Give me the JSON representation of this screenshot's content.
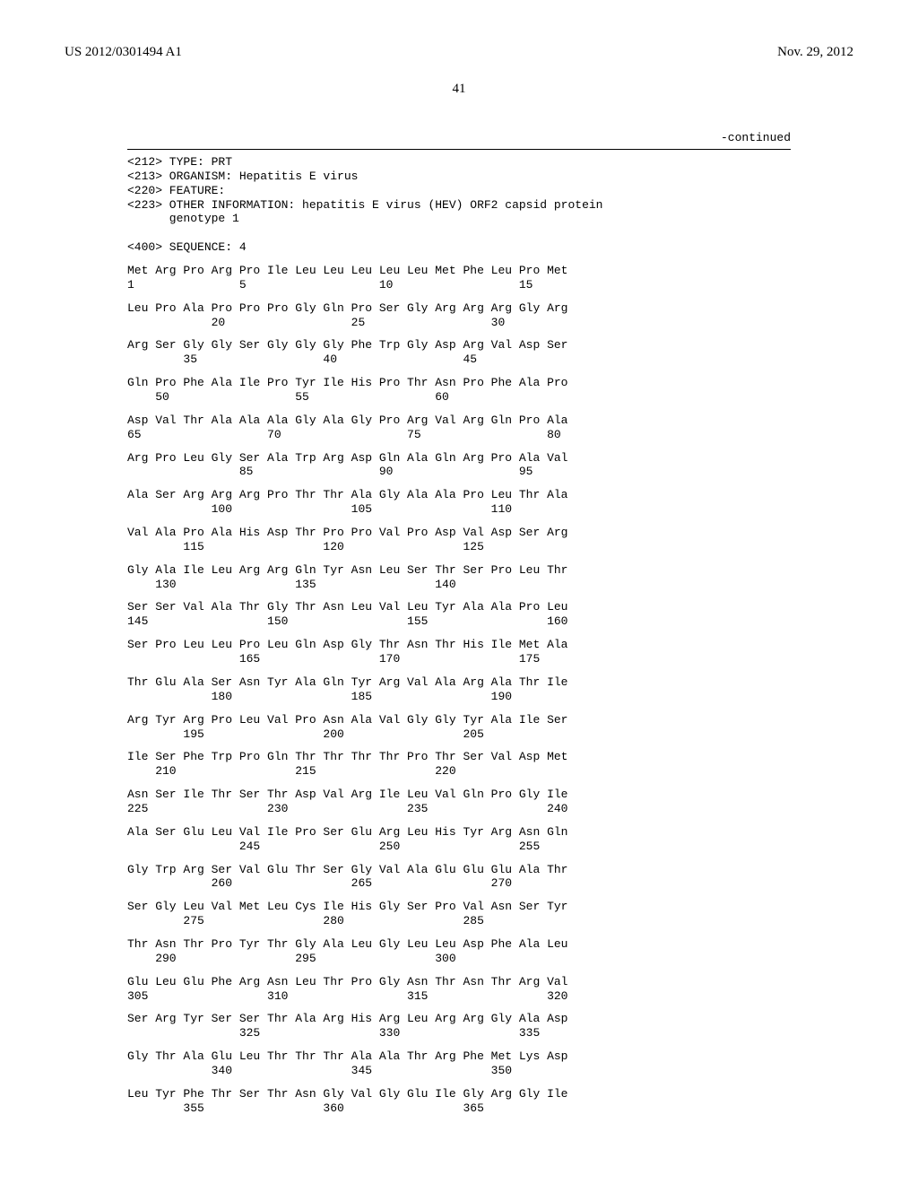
{
  "header": {
    "pub_number": "US 2012/0301494 A1",
    "pub_date": "Nov. 29, 2012"
  },
  "page_number": "41",
  "continued_label": "-continued",
  "meta": [
    "<212> TYPE: PRT",
    "<213> ORGANISM: Hepatitis E virus",
    "<220> FEATURE:",
    "<223> OTHER INFORMATION: hepatitis E virus (HEV) ORF2 capsid protein",
    "      genotype 1",
    "",
    "<400> SEQUENCE: 4"
  ],
  "sequence_rows": [
    {
      "aa": "Met Arg Pro Arg Pro Ile Leu Leu Leu Leu Leu Met Phe Leu Pro Met",
      "nm": "1               5                   10                  15"
    },
    {
      "aa": "Leu Pro Ala Pro Pro Pro Gly Gln Pro Ser Gly Arg Arg Arg Gly Arg",
      "nm": "            20                  25                  30"
    },
    {
      "aa": "Arg Ser Gly Gly Ser Gly Gly Gly Phe Trp Gly Asp Arg Val Asp Ser",
      "nm": "        35                  40                  45"
    },
    {
      "aa": "Gln Pro Phe Ala Ile Pro Tyr Ile His Pro Thr Asn Pro Phe Ala Pro",
      "nm": "    50                  55                  60"
    },
    {
      "aa": "Asp Val Thr Ala Ala Ala Gly Ala Gly Pro Arg Val Arg Gln Pro Ala",
      "nm": "65                  70                  75                  80"
    },
    {
      "aa": "Arg Pro Leu Gly Ser Ala Trp Arg Asp Gln Ala Gln Arg Pro Ala Val",
      "nm": "                85                  90                  95"
    },
    {
      "aa": "Ala Ser Arg Arg Arg Pro Thr Thr Ala Gly Ala Ala Pro Leu Thr Ala",
      "nm": "            100                 105                 110"
    },
    {
      "aa": "Val Ala Pro Ala His Asp Thr Pro Pro Val Pro Asp Val Asp Ser Arg",
      "nm": "        115                 120                 125"
    },
    {
      "aa": "Gly Ala Ile Leu Arg Arg Gln Tyr Asn Leu Ser Thr Ser Pro Leu Thr",
      "nm": "    130                 135                 140"
    },
    {
      "aa": "Ser Ser Val Ala Thr Gly Thr Asn Leu Val Leu Tyr Ala Ala Pro Leu",
      "nm": "145                 150                 155                 160"
    },
    {
      "aa": "Ser Pro Leu Leu Pro Leu Gln Asp Gly Thr Asn Thr His Ile Met Ala",
      "nm": "                165                 170                 175"
    },
    {
      "aa": "Thr Glu Ala Ser Asn Tyr Ala Gln Tyr Arg Val Ala Arg Ala Thr Ile",
      "nm": "            180                 185                 190"
    },
    {
      "aa": "Arg Tyr Arg Pro Leu Val Pro Asn Ala Val Gly Gly Tyr Ala Ile Ser",
      "nm": "        195                 200                 205"
    },
    {
      "aa": "Ile Ser Phe Trp Pro Gln Thr Thr Thr Thr Pro Thr Ser Val Asp Met",
      "nm": "    210                 215                 220"
    },
    {
      "aa": "Asn Ser Ile Thr Ser Thr Asp Val Arg Ile Leu Val Gln Pro Gly Ile",
      "nm": "225                 230                 235                 240"
    },
    {
      "aa": "Ala Ser Glu Leu Val Ile Pro Ser Glu Arg Leu His Tyr Arg Asn Gln",
      "nm": "                245                 250                 255"
    },
    {
      "aa": "Gly Trp Arg Ser Val Glu Thr Ser Gly Val Ala Glu Glu Glu Ala Thr",
      "nm": "            260                 265                 270"
    },
    {
      "aa": "Ser Gly Leu Val Met Leu Cys Ile His Gly Ser Pro Val Asn Ser Tyr",
      "nm": "        275                 280                 285"
    },
    {
      "aa": "Thr Asn Thr Pro Tyr Thr Gly Ala Leu Gly Leu Leu Asp Phe Ala Leu",
      "nm": "    290                 295                 300"
    },
    {
      "aa": "Glu Leu Glu Phe Arg Asn Leu Thr Pro Gly Asn Thr Asn Thr Arg Val",
      "nm": "305                 310                 315                 320"
    },
    {
      "aa": "Ser Arg Tyr Ser Ser Thr Ala Arg His Arg Leu Arg Arg Gly Ala Asp",
      "nm": "                325                 330                 335"
    },
    {
      "aa": "Gly Thr Ala Glu Leu Thr Thr Thr Ala Ala Thr Arg Phe Met Lys Asp",
      "nm": "            340                 345                 350"
    },
    {
      "aa": "Leu Tyr Phe Thr Ser Thr Asn Gly Val Gly Glu Ile Gly Arg Gly Ile",
      "nm": "        355                 360                 365"
    }
  ]
}
